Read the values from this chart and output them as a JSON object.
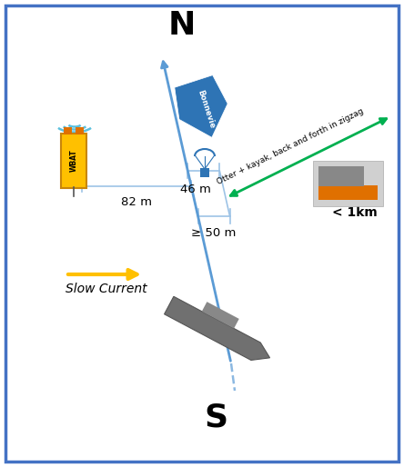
{
  "bg_color": "#ffffff",
  "border_color": "#4472c4",
  "title_N": "N",
  "title_S": "S",
  "main_line_color": "#5b9bd5",
  "bracket_color": "#9dc3e6",
  "wbat_color": "#ffc000",
  "wbat_label": "WBAT",
  "dist_82": "82 m",
  "dist_46": "46 m",
  "dist_50": "≥ 50 m",
  "current_color": "#ffc000",
  "current_label": "Slow Current",
  "otter_color": "#00b050",
  "otter_label": "Otter + kayak, back and forth in zigzag",
  "otter_dist": "< 1km",
  "bonneville_label": "Bonnevie",
  "bonneville_color": "#2e74b5",
  "wifi_color": "#5bc0de",
  "ship_color": "#808080"
}
